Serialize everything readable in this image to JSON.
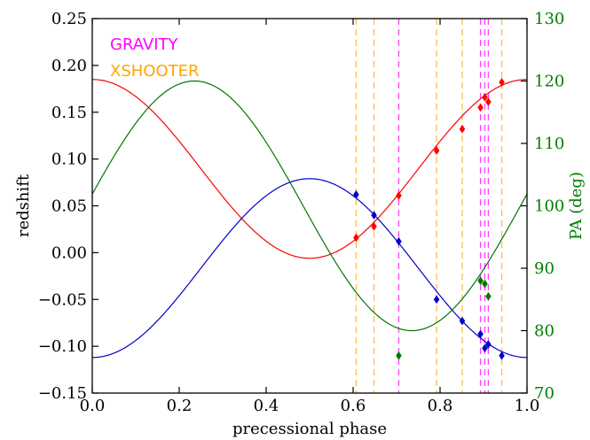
{
  "chart_data": {
    "type": "scatter",
    "xlabel": "precessional phase",
    "ylabel": "redshift",
    "ylabel_right": "PA (deg)",
    "xlim": [
      0.0,
      1.0
    ],
    "ylim": [
      -0.15,
      0.25
    ],
    "ylim_right": [
      70,
      130
    ],
    "x_ticks": [
      "0.0",
      "0.2",
      "0.4",
      "0.6",
      "0.8",
      "1.0"
    ],
    "y_ticks": [
      "−0.15",
      "−0.10",
      "−0.05",
      "0.00",
      "0.05",
      "0.10",
      "0.15",
      "0.20",
      "0.25"
    ],
    "y_ticks_right": [
      "70",
      "80",
      "90",
      "100",
      "110",
      "120",
      "130"
    ],
    "grid": false,
    "legend": {
      "placement": "top-left",
      "entries": [
        {
          "label": "GRAVITY",
          "color": "#ff00ff"
        },
        {
          "label": "XSHOOTER",
          "color": "#ffa500"
        }
      ]
    },
    "colors": {
      "red": "#ff0000",
      "blue": "#0000cc",
      "green": "#007700",
      "right_axis": "#008000"
    },
    "vlines": {
      "gravity": [
        0.705,
        0.893,
        0.903,
        0.911
      ],
      "xshooter": [
        0.607,
        0.648,
        0.792,
        0.851,
        0.942
      ]
    },
    "models": {
      "red": {
        "amplitude": 0.0955,
        "offset": 0.0895,
        "phase0": 0.0,
        "axis": "left"
      },
      "blue": {
        "amplitude": 0.0955,
        "offset": -0.0165,
        "phase0": 0.5,
        "axis": "left"
      },
      "green": {
        "amplitude": 20.0,
        "offset": 100.0,
        "phase0": 0.235,
        "axis": "right"
      }
    },
    "series": [
      {
        "color": "red",
        "axis": "left",
        "x": [
          0.607,
          0.648,
          0.705,
          0.792,
          0.851,
          0.893,
          0.903,
          0.911,
          0.942
        ],
        "y": [
          0.016,
          0.028,
          0.061,
          0.109,
          0.132,
          0.155,
          0.166,
          0.161,
          0.182
        ]
      },
      {
        "color": "blue",
        "axis": "left",
        "x": [
          0.607,
          0.648,
          0.705,
          0.792,
          0.851,
          0.893,
          0.903,
          0.911,
          0.942
        ],
        "y": [
          0.062,
          0.04,
          0.012,
          -0.05,
          -0.073,
          -0.087,
          -0.102,
          -0.098,
          -0.11
        ]
      },
      {
        "color": "green",
        "axis": "right",
        "x": [
          0.705,
          0.893,
          0.903,
          0.911
        ],
        "y": [
          76.0,
          88.0,
          87.5,
          85.5
        ]
      }
    ]
  }
}
